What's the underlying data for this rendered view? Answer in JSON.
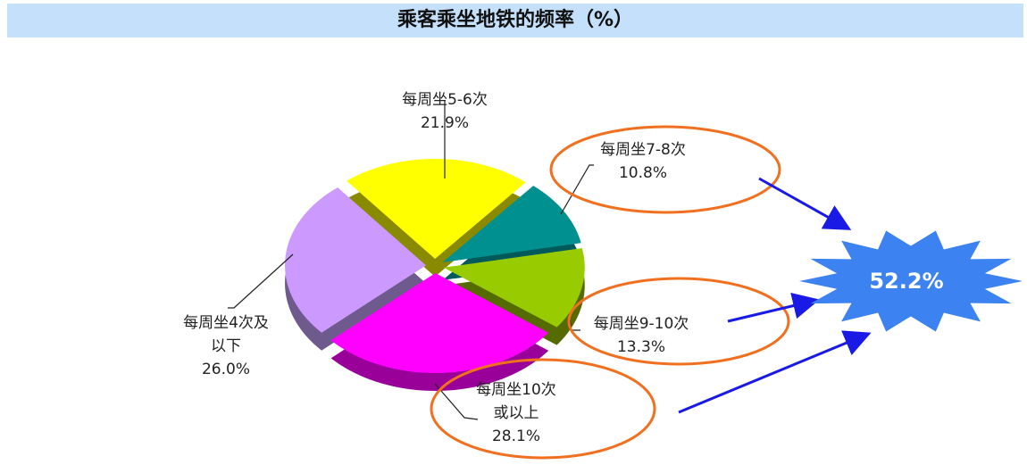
{
  "title": "乘客乘坐地铁的频率（%）",
  "chart_data": {
    "type": "pie",
    "title": "乘客乘坐地铁的频率（%）",
    "slices": [
      {
        "label": [
          "每周坐7-8次"
        ],
        "value": 10.8,
        "value_label": "10.8%",
        "color": "#009090",
        "side": "#005a5a",
        "highlighted": true
      },
      {
        "label": [
          "每周坐9-10次"
        ],
        "value": 13.3,
        "value_label": "13.3%",
        "color": "#99cc00",
        "side": "#556b00",
        "highlighted": true
      },
      {
        "label": [
          "每周坐10次",
          "或以上"
        ],
        "value": 28.1,
        "value_label": "28.1%",
        "color": "#ff00ff",
        "side": "#990099",
        "highlighted": true
      },
      {
        "label": [
          "每周坐4次及",
          "以下"
        ],
        "value": 26.0,
        "value_label": "26.0%",
        "color": "#cc99ff",
        "side": "#6e5a8c",
        "highlighted": false
      },
      {
        "label": [
          "每周坐5-6次"
        ],
        "value": 21.9,
        "value_label": "21.9%",
        "color": "#ffff00",
        "side": "#8a8a00",
        "highlighted": false
      }
    ],
    "annotation": "52.2%",
    "colors": {
      "highlight_ellipse": "#f07020",
      "arrow": "#1a1ae6",
      "burst": "#3c82f0"
    }
  }
}
